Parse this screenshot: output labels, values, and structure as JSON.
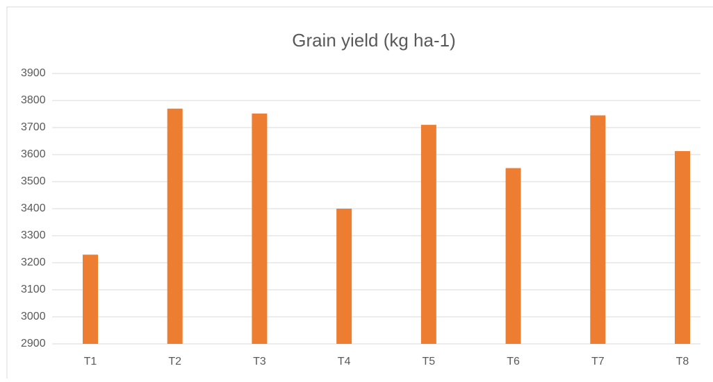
{
  "chart_data": {
    "type": "bar",
    "title": "Grain yield (kg ha-1)",
    "categories": [
      "T1",
      "T2",
      "T3",
      "T4",
      "T5",
      "T6",
      "T7",
      "T8"
    ],
    "values": [
      3230,
      3770,
      3752,
      3400,
      3710,
      3550,
      3745,
      3613
    ],
    "color": "#ed7d31",
    "ylim": [
      2900,
      3900
    ],
    "yticks": [
      2900,
      3000,
      3100,
      3200,
      3300,
      3400,
      3500,
      3600,
      3700,
      3800,
      3900
    ],
    "grid": true
  }
}
